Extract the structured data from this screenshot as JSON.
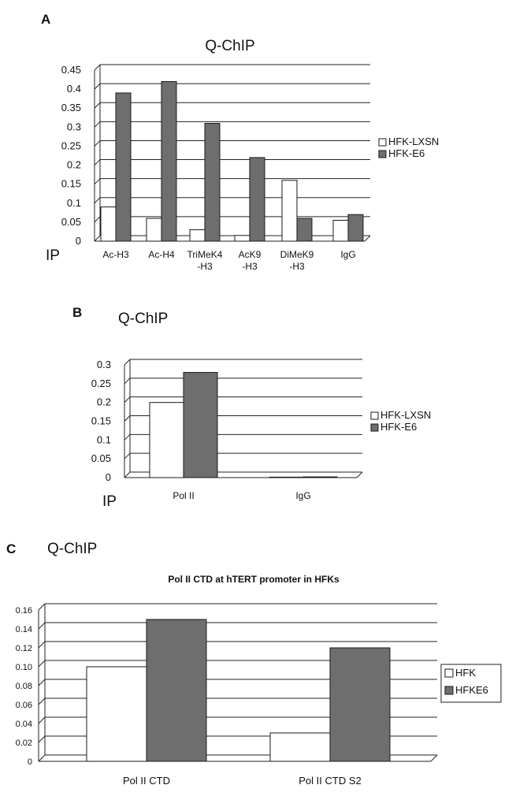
{
  "colors": {
    "grid": "#222222",
    "axis": "#222222",
    "series_light": "#ffffff",
    "series_dark": "#6e6e6e",
    "bar_stroke": "#1a1a1a",
    "text": "#111111"
  },
  "chart_data": [
    {
      "panel_label": "A",
      "type": "bar",
      "title": "Q-ChIP",
      "xlabel": "IP",
      "ylabel": "",
      "ylim": [
        0,
        0.45
      ],
      "yticks": [
        "0.45",
        "0.4",
        "0.35",
        "0.3",
        "0.25",
        "0.2",
        "0.15",
        "0.1",
        "0.05",
        "0"
      ],
      "categories": [
        [
          "Ac-H3"
        ],
        [
          "Ac-H4"
        ],
        [
          "TriMeK4",
          "-H3"
        ],
        [
          "AcK9",
          "-H3"
        ],
        [
          "DiMeK9",
          "-H3"
        ],
        [
          "IgG"
        ]
      ],
      "series": [
        {
          "name": "HFK-LXSN",
          "values": [
            0.09,
            0.06,
            0.03,
            0.015,
            0.16,
            0.055
          ]
        },
        {
          "name": "HFK-E6",
          "values": [
            0.39,
            0.42,
            0.31,
            0.22,
            0.06,
            0.07
          ]
        }
      ],
      "legend": "right"
    },
    {
      "panel_label": "B",
      "type": "bar",
      "title": "Q-ChIP",
      "xlabel": "IP",
      "ylabel": "",
      "ylim": [
        0,
        0.3
      ],
      "yticks": [
        "0.3",
        "0.25",
        "0.2",
        "0.15",
        "0.1",
        "0.05",
        "0"
      ],
      "categories": [
        [
          "Pol II"
        ],
        [
          "IgG"
        ]
      ],
      "series": [
        {
          "name": "HFK-LXSN",
          "values": [
            0.2,
            0.001
          ]
        },
        {
          "name": "HFK-E6",
          "values": [
            0.28,
            0.002
          ]
        }
      ],
      "legend": "right"
    },
    {
      "panel_label": "C",
      "type": "bar",
      "title": "Q-ChIP",
      "subtitle": "Pol II CTD at hTERT promoter in HFKs",
      "xlabel": "",
      "ylabel": "",
      "ylim": [
        0,
        0.16
      ],
      "yticks": [
        "0.16",
        "0.14",
        "0.12",
        "0.10",
        "0.08",
        "0.06",
        "0.04",
        "0.02",
        "0"
      ],
      "categories": [
        [
          "Pol II CTD"
        ],
        [
          "Pol II CTD S2"
        ]
      ],
      "series": [
        {
          "name": "HFK",
          "values": [
            0.1,
            0.03
          ]
        },
        {
          "name": "HFKE6",
          "values": [
            0.15,
            0.12
          ]
        }
      ],
      "legend": "right"
    }
  ]
}
